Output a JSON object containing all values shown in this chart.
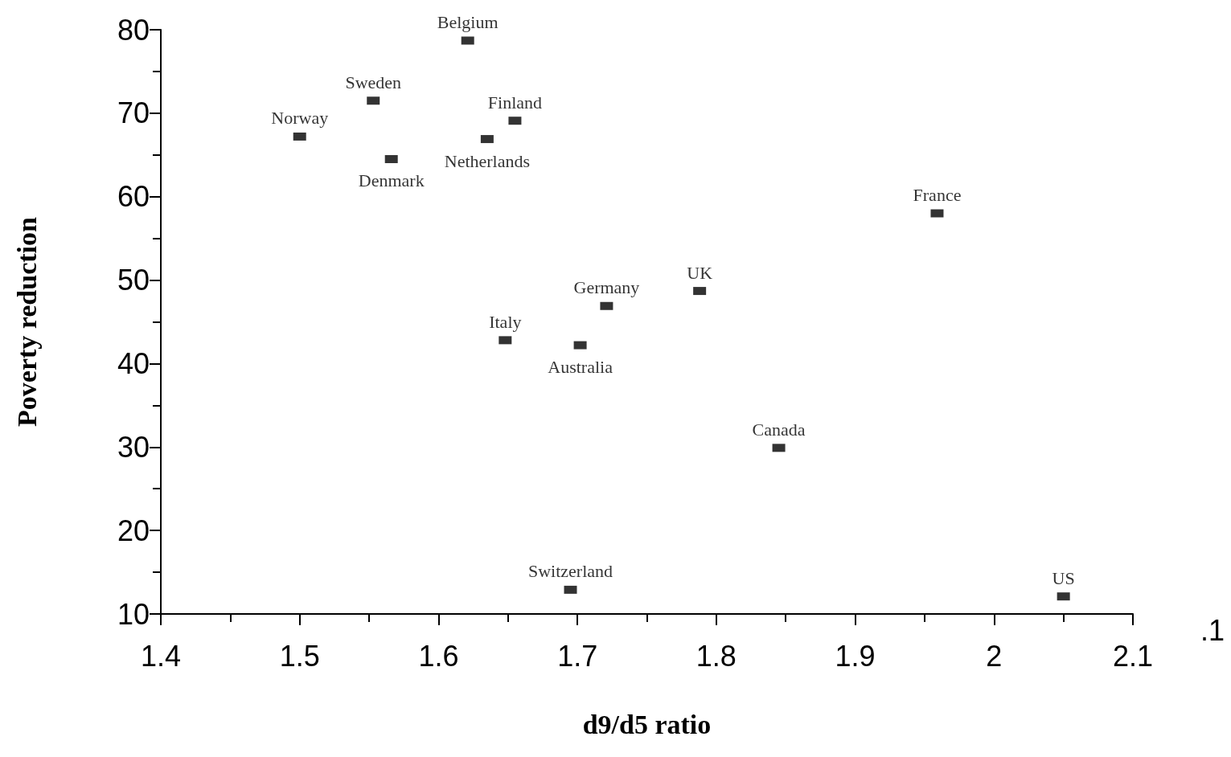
{
  "chart_data": {
    "type": "scatter",
    "xlabel": "d9/d5 ratio",
    "ylabel": "Poverty reduction",
    "x": [
      1.5,
      1.553,
      1.566,
      1.621,
      1.635,
      1.655,
      1.648,
      1.702,
      1.721,
      1.695,
      1.788,
      1.845,
      1.959,
      2.05
    ],
    "values": [
      67.2,
      71.5,
      64.5,
      78.7,
      66.9,
      69.1,
      42.8,
      42.2,
      46.9,
      12.9,
      48.7,
      29.9,
      58.0,
      12.1
    ],
    "color": "#000000",
    "marker": "square",
    "grid": false,
    "xlim": [
      1.4,
      2.1
    ],
    "xticks": [
      1.4,
      1.5,
      1.6,
      1.7,
      1.8,
      1.9,
      2,
      2.1
    ],
    "ylim": [
      10,
      80
    ],
    "yticks": [
      10,
      20,
      30,
      40,
      50,
      60,
      70,
      80
    ],
    "annotations": [
      {
        "text": "Norway",
        "x": 1.5,
        "y": 67.2
      },
      {
        "text": "Sweden",
        "x": 1.553,
        "y": 71.5
      },
      {
        "text": "Denmark",
        "x": 1.566,
        "y": 64.5
      },
      {
        "text": "Belgium",
        "x": 1.621,
        "y": 78.7
      },
      {
        "text": "Netherlands",
        "x": 1.635,
        "y": 66.9
      },
      {
        "text": "Finland",
        "x": 1.655,
        "y": 69.1
      },
      {
        "text": "Italy",
        "x": 1.648,
        "y": 42.8
      },
      {
        "text": "Australia",
        "x": 1.702,
        "y": 42.2
      },
      {
        "text": "Germany",
        "x": 1.721,
        "y": 46.9
      },
      {
        "text": "Switzerland",
        "x": 1.695,
        "y": 12.9
      },
      {
        "text": "UK",
        "x": 1.788,
        "y": 48.7
      },
      {
        "text": "Canada",
        "x": 1.845,
        "y": 29.9
      },
      {
        "text": "France",
        "x": 1.959,
        "y": 58.0
      },
      {
        "text": "US",
        "x": 2.05,
        "y": 12.1
      },
      ".1"
    ]
  }
}
